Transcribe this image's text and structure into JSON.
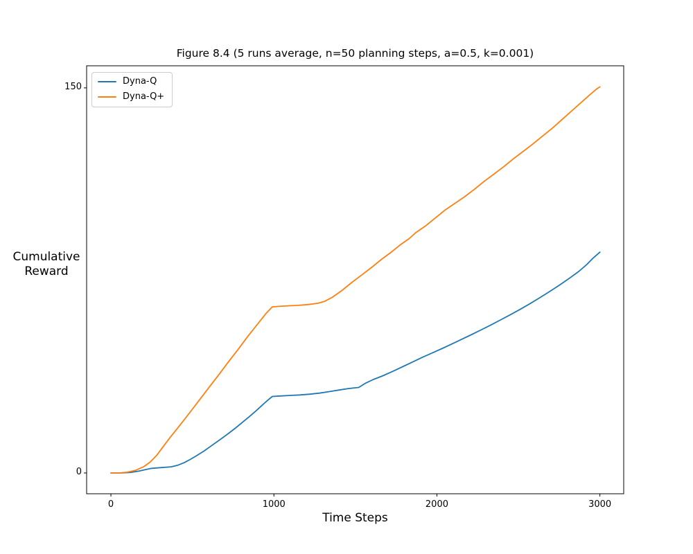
{
  "chart_data": {
    "type": "line",
    "title": "Figure 8.4 (5 runs average, n=50 planning steps, a=0.5, k=0.001)",
    "xlabel": "Time Steps",
    "ylabel": "Cumulative\nReward",
    "xlim": [
      -149,
      3146
    ],
    "ylim": [
      -8.1,
      158.6
    ],
    "xticks": [
      0,
      1000,
      2000,
      3000
    ],
    "yticks": [
      0,
      150
    ],
    "grid": false,
    "legend_position": "upper-left",
    "series": [
      {
        "name": "Dyna-Q",
        "color": "#1f77b4",
        "points": [
          [
            0,
            0
          ],
          [
            60,
            0
          ],
          [
            120,
            0.2
          ],
          [
            170,
            0.7
          ],
          [
            210,
            1.3
          ],
          [
            250,
            1.8
          ],
          [
            310,
            2.1
          ],
          [
            370,
            2.4
          ],
          [
            410,
            3.0
          ],
          [
            450,
            4.0
          ],
          [
            490,
            5.4
          ],
          [
            530,
            6.9
          ],
          [
            570,
            8.5
          ],
          [
            610,
            10.3
          ],
          [
            650,
            12.1
          ],
          [
            690,
            13.9
          ],
          [
            730,
            15.8
          ],
          [
            770,
            17.8
          ],
          [
            810,
            19.9
          ],
          [
            850,
            22.0
          ],
          [
            890,
            24.2
          ],
          [
            930,
            26.5
          ],
          [
            960,
            28.2
          ],
          [
            990,
            29.8
          ],
          [
            1040,
            30.0
          ],
          [
            1100,
            30.2
          ],
          [
            1160,
            30.4
          ],
          [
            1220,
            30.7
          ],
          [
            1280,
            31.1
          ],
          [
            1340,
            31.7
          ],
          [
            1400,
            32.3
          ],
          [
            1460,
            32.9
          ],
          [
            1520,
            33.3
          ],
          [
            1560,
            34.9
          ],
          [
            1610,
            36.4
          ],
          [
            1670,
            37.9
          ],
          [
            1730,
            39.6
          ],
          [
            1790,
            41.4
          ],
          [
            1850,
            43.2
          ],
          [
            1910,
            45.0
          ],
          [
            1970,
            46.7
          ],
          [
            2030,
            48.4
          ],
          [
            2090,
            50.2
          ],
          [
            2150,
            52.0
          ],
          [
            2210,
            53.8
          ],
          [
            2270,
            55.7
          ],
          [
            2330,
            57.6
          ],
          [
            2390,
            59.6
          ],
          [
            2450,
            61.6
          ],
          [
            2510,
            63.7
          ],
          [
            2570,
            65.9
          ],
          [
            2630,
            68.2
          ],
          [
            2690,
            70.6
          ],
          [
            2750,
            73.1
          ],
          [
            2810,
            75.7
          ],
          [
            2870,
            78.5
          ],
          [
            2920,
            81.2
          ],
          [
            2960,
            83.8
          ],
          [
            3000,
            86.0
          ]
        ]
      },
      {
        "name": "Dyna-Q+",
        "color": "#ff7f0e",
        "points": [
          [
            0,
            0
          ],
          [
            50,
            0
          ],
          [
            100,
            0.3
          ],
          [
            150,
            1.0
          ],
          [
            200,
            2.4
          ],
          [
            240,
            4.2
          ],
          [
            280,
            6.8
          ],
          [
            320,
            10.2
          ],
          [
            360,
            13.6
          ],
          [
            420,
            18.3
          ],
          [
            480,
            23.2
          ],
          [
            540,
            28.2
          ],
          [
            600,
            33.2
          ],
          [
            660,
            38.1
          ],
          [
            720,
            43.2
          ],
          [
            780,
            48.1
          ],
          [
            840,
            53.2
          ],
          [
            900,
            58.0
          ],
          [
            950,
            62.0
          ],
          [
            990,
            64.7
          ],
          [
            1030,
            64.9
          ],
          [
            1090,
            65.1
          ],
          [
            1150,
            65.3
          ],
          [
            1210,
            65.6
          ],
          [
            1270,
            66.1
          ],
          [
            1310,
            66.8
          ],
          [
            1360,
            68.5
          ],
          [
            1420,
            71.2
          ],
          [
            1480,
            74.3
          ],
          [
            1540,
            77.2
          ],
          [
            1600,
            80.1
          ],
          [
            1660,
            83.2
          ],
          [
            1720,
            86.0
          ],
          [
            1780,
            89.1
          ],
          [
            1830,
            91.3
          ],
          [
            1870,
            93.6
          ],
          [
            1930,
            96.2
          ],
          [
            1990,
            99.3
          ],
          [
            2050,
            102.4
          ],
          [
            2110,
            105.0
          ],
          [
            2170,
            107.6
          ],
          [
            2230,
            110.5
          ],
          [
            2290,
            113.6
          ],
          [
            2350,
            116.4
          ],
          [
            2410,
            119.3
          ],
          [
            2470,
            122.4
          ],
          [
            2530,
            125.3
          ],
          [
            2590,
            128.2
          ],
          [
            2650,
            131.3
          ],
          [
            2710,
            134.4
          ],
          [
            2770,
            137.8
          ],
          [
            2830,
            141.2
          ],
          [
            2890,
            144.6
          ],
          [
            2940,
            147.4
          ],
          [
            2980,
            149.6
          ],
          [
            3000,
            150.4
          ]
        ]
      }
    ]
  }
}
